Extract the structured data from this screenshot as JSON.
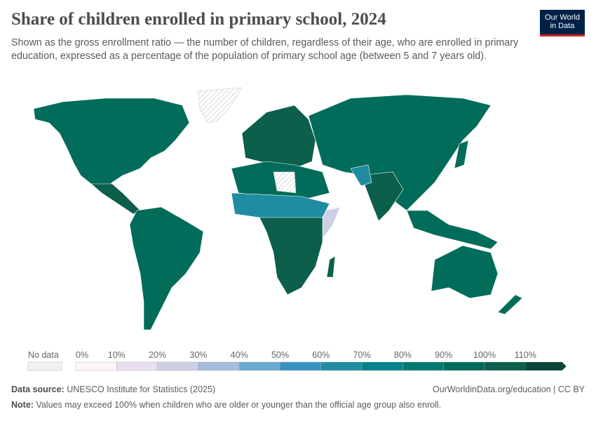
{
  "header": {
    "title": "Share of children enrolled in primary school, 2024",
    "subtitle": "Shown as the gross enrollment ratio — the number of children, regardless of their age, who are enrolled in primary education, expressed as a percentage of the population of primary school age (between 5 and 7 years old).",
    "logo_line1": "Our World",
    "logo_line2": "in Data"
  },
  "map": {
    "type": "choropleth",
    "projection": "world",
    "no_data_pattern": "hatched-grey"
  },
  "legend": {
    "no_data_label": "No data",
    "ticks": [
      "0%",
      "10%",
      "20%",
      "30%",
      "40%",
      "50%",
      "60%",
      "70%",
      "80%",
      "90%",
      "100%",
      "110%"
    ],
    "colors": [
      "#fdf3f9",
      "#e9dfef",
      "#cdcfe5",
      "#a7bddb",
      "#68aad0",
      "#3990c2",
      "#1f8ca2",
      "#03818a",
      "#027a70",
      "#016c59",
      "#0b5f4b",
      "#0c4539"
    ]
  },
  "footer": {
    "source_label": "Data source:",
    "source": "UNESCO Institute for Statistics (2025)",
    "url": "OurWorldinData.org/education | CC BY",
    "note_label": "Note:",
    "note": "Values may exceed 100% when children who are older or younger than the official age group also enroll."
  }
}
